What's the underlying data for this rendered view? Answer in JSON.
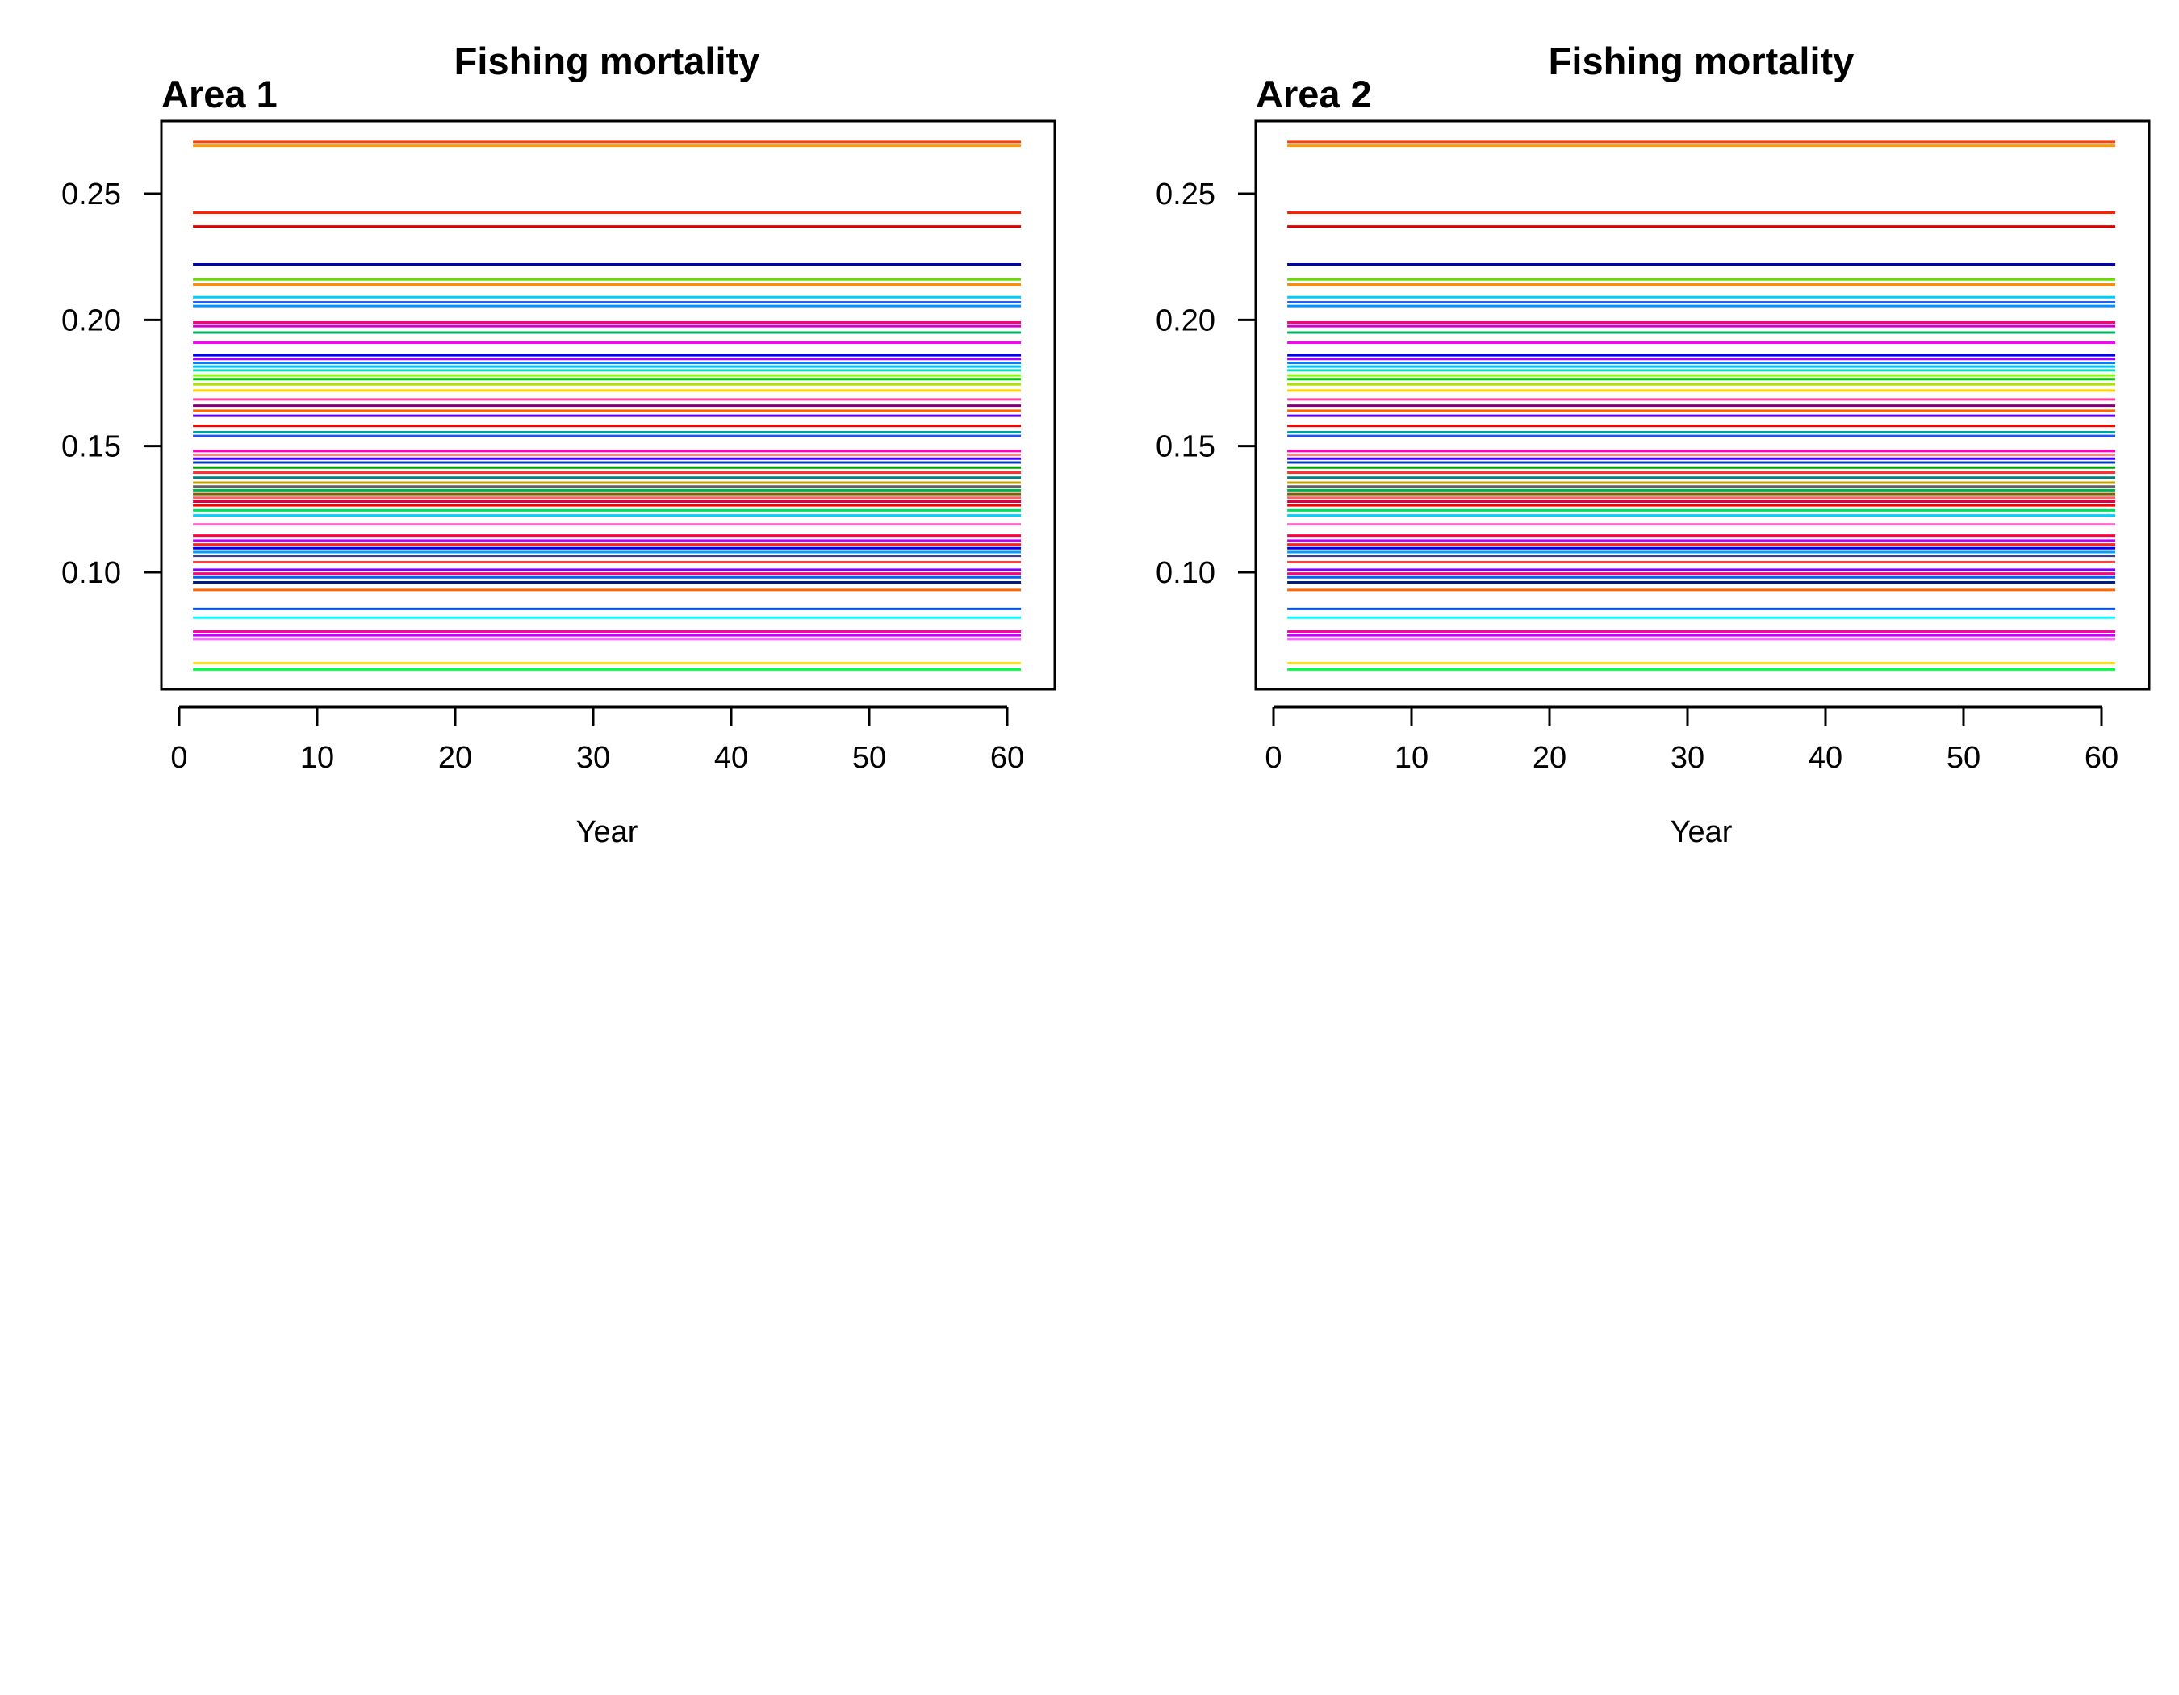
{
  "chart_data": [
    {
      "type": "line",
      "title": "Fishing mortality",
      "panel_label": "Area 1",
      "xlabel": "Year",
      "ylabel": "",
      "xlim": [
        1,
        61
      ],
      "ylim": [
        0.055,
        0.28
      ],
      "xticks": [
        0,
        10,
        20,
        30,
        40,
        50,
        60
      ],
      "xtick_labels": [
        "0",
        "10",
        "20",
        "30",
        "40",
        "50",
        "60"
      ],
      "yticks": [
        0.1,
        0.15,
        0.2,
        0.25
      ],
      "ytick_labels": [
        "0.10",
        "0.15",
        "0.20",
        "0.25"
      ],
      "grid": false,
      "legend": "none",
      "x_range": [
        1,
        61
      ],
      "series": [
        {
          "value": 0.2705,
          "color": "#ff4000"
        },
        {
          "value": 0.269,
          "color": "#ff9900"
        },
        {
          "value": 0.2425,
          "color": "#ff2000"
        },
        {
          "value": 0.237,
          "color": "#e00000"
        },
        {
          "value": 0.222,
          "color": "#0000b0"
        },
        {
          "value": 0.216,
          "color": "#66dd00"
        },
        {
          "value": 0.214,
          "color": "#ff8c00"
        },
        {
          "value": 0.209,
          "color": "#00ccff"
        },
        {
          "value": 0.207,
          "color": "#2060ff"
        },
        {
          "value": 0.2055,
          "color": "#0090ff"
        },
        {
          "value": 0.199,
          "color": "#ff0080"
        },
        {
          "value": 0.1975,
          "color": "#cc00cc"
        },
        {
          "value": 0.195,
          "color": "#00b060"
        },
        {
          "value": 0.191,
          "color": "#ff00ff"
        },
        {
          "value": 0.186,
          "color": "#0000ff"
        },
        {
          "value": 0.1845,
          "color": "#a000ff"
        },
        {
          "value": 0.183,
          "color": "#0080ff"
        },
        {
          "value": 0.1815,
          "color": "#00c0ff"
        },
        {
          "value": 0.18,
          "color": "#00e0c0"
        },
        {
          "value": 0.178,
          "color": "#80ff00"
        },
        {
          "value": 0.1765,
          "color": "#00cc00"
        },
        {
          "value": 0.1745,
          "color": "#b0e000"
        },
        {
          "value": 0.172,
          "color": "#ffd000"
        },
        {
          "value": 0.1685,
          "color": "#ff40a0"
        },
        {
          "value": 0.166,
          "color": "#800080"
        },
        {
          "value": 0.164,
          "color": "#ff6600"
        },
        {
          "value": 0.162,
          "color": "#6000ff"
        },
        {
          "value": 0.158,
          "color": "#ff0000"
        },
        {
          "value": 0.1555,
          "color": "#00a0a0"
        },
        {
          "value": 0.154,
          "color": "#2050ff"
        },
        {
          "value": 0.148,
          "color": "#ff00c0"
        },
        {
          "value": 0.1465,
          "color": "#ff8080"
        },
        {
          "value": 0.145,
          "color": "#4000ff"
        },
        {
          "value": 0.1435,
          "color": "#0040c0"
        },
        {
          "value": 0.1415,
          "color": "#00a000"
        },
        {
          "value": 0.1395,
          "color": "#ff3030"
        },
        {
          "value": 0.1375,
          "color": "#008080"
        },
        {
          "value": 0.1355,
          "color": "#c0a000"
        },
        {
          "value": 0.134,
          "color": "#606060"
        },
        {
          "value": 0.1325,
          "color": "#00b050"
        },
        {
          "value": 0.131,
          "color": "#806000"
        },
        {
          "value": 0.1295,
          "color": "#ff6060"
        },
        {
          "value": 0.128,
          "color": "#e00040"
        },
        {
          "value": 0.1265,
          "color": "#ff0000"
        },
        {
          "value": 0.1245,
          "color": "#00e060"
        },
        {
          "value": 0.1225,
          "color": "#00d0ff"
        },
        {
          "value": 0.119,
          "color": "#ff66cc"
        },
        {
          "value": 0.1145,
          "color": "#ff0040"
        },
        {
          "value": 0.1125,
          "color": "#c000ff"
        },
        {
          "value": 0.111,
          "color": "#ff2020"
        },
        {
          "value": 0.1095,
          "color": "#0000ff"
        },
        {
          "value": 0.108,
          "color": "#00a0ff"
        },
        {
          "value": 0.1065,
          "color": "#404080"
        },
        {
          "value": 0.104,
          "color": "#ff4040"
        },
        {
          "value": 0.101,
          "color": "#8000ff"
        },
        {
          "value": 0.0995,
          "color": "#ff0080"
        },
        {
          "value": 0.098,
          "color": "#0060ff"
        },
        {
          "value": 0.096,
          "color": "#002080"
        },
        {
          "value": 0.093,
          "color": "#ff6600"
        },
        {
          "value": 0.0855,
          "color": "#0050ff"
        },
        {
          "value": 0.082,
          "color": "#00ffff"
        },
        {
          "value": 0.0765,
          "color": "#ff00aa"
        },
        {
          "value": 0.075,
          "color": "#cc00ff"
        },
        {
          "value": 0.0735,
          "color": "#ff66ff"
        },
        {
          "value": 0.064,
          "color": "#ffe000"
        },
        {
          "value": 0.0615,
          "color": "#00ff40"
        }
      ]
    },
    {
      "type": "line",
      "title": "Fishing mortality",
      "panel_label": "Area 2",
      "xlabel": "Year",
      "ylabel": "",
      "xlim": [
        1,
        61
      ],
      "ylim": [
        0.055,
        0.28
      ],
      "xticks": [
        0,
        10,
        20,
        30,
        40,
        50,
        60
      ],
      "xtick_labels": [
        "0",
        "10",
        "20",
        "30",
        "40",
        "50",
        "60"
      ],
      "yticks": [
        0.1,
        0.15,
        0.2,
        0.25
      ],
      "ytick_labels": [
        "0.10",
        "0.15",
        "0.20",
        "0.25"
      ],
      "grid": false,
      "legend": "none",
      "x_range": [
        1,
        61
      ],
      "series": [
        {
          "value": 0.2705,
          "color": "#ff4000"
        },
        {
          "value": 0.269,
          "color": "#ff9900"
        },
        {
          "value": 0.2425,
          "color": "#ff2000"
        },
        {
          "value": 0.237,
          "color": "#e00000"
        },
        {
          "value": 0.222,
          "color": "#0000b0"
        },
        {
          "value": 0.216,
          "color": "#66dd00"
        },
        {
          "value": 0.214,
          "color": "#ff8c00"
        },
        {
          "value": 0.209,
          "color": "#00ccff"
        },
        {
          "value": 0.207,
          "color": "#2060ff"
        },
        {
          "value": 0.2055,
          "color": "#0090ff"
        },
        {
          "value": 0.199,
          "color": "#ff0080"
        },
        {
          "value": 0.1975,
          "color": "#cc00cc"
        },
        {
          "value": 0.195,
          "color": "#00b060"
        },
        {
          "value": 0.191,
          "color": "#ff00ff"
        },
        {
          "value": 0.186,
          "color": "#0000ff"
        },
        {
          "value": 0.1845,
          "color": "#a000ff"
        },
        {
          "value": 0.183,
          "color": "#0080ff"
        },
        {
          "value": 0.1815,
          "color": "#00c0ff"
        },
        {
          "value": 0.18,
          "color": "#00e0c0"
        },
        {
          "value": 0.178,
          "color": "#80ff00"
        },
        {
          "value": 0.1765,
          "color": "#00cc00"
        },
        {
          "value": 0.1745,
          "color": "#b0e000"
        },
        {
          "value": 0.172,
          "color": "#ffd000"
        },
        {
          "value": 0.1685,
          "color": "#ff40a0"
        },
        {
          "value": 0.166,
          "color": "#800080"
        },
        {
          "value": 0.164,
          "color": "#ff6600"
        },
        {
          "value": 0.162,
          "color": "#6000ff"
        },
        {
          "value": 0.158,
          "color": "#ff0000"
        },
        {
          "value": 0.1555,
          "color": "#00a0a0"
        },
        {
          "value": 0.154,
          "color": "#2050ff"
        },
        {
          "value": 0.148,
          "color": "#ff00c0"
        },
        {
          "value": 0.1465,
          "color": "#ff8080"
        },
        {
          "value": 0.145,
          "color": "#4000ff"
        },
        {
          "value": 0.1435,
          "color": "#0040c0"
        },
        {
          "value": 0.1415,
          "color": "#00a000"
        },
        {
          "value": 0.1395,
          "color": "#ff3030"
        },
        {
          "value": 0.1375,
          "color": "#008080"
        },
        {
          "value": 0.1355,
          "color": "#c0a000"
        },
        {
          "value": 0.134,
          "color": "#606060"
        },
        {
          "value": 0.1325,
          "color": "#00b050"
        },
        {
          "value": 0.131,
          "color": "#806000"
        },
        {
          "value": 0.1295,
          "color": "#ff6060"
        },
        {
          "value": 0.128,
          "color": "#e00040"
        },
        {
          "value": 0.1265,
          "color": "#ff0000"
        },
        {
          "value": 0.1245,
          "color": "#00e060"
        },
        {
          "value": 0.1225,
          "color": "#00d0ff"
        },
        {
          "value": 0.119,
          "color": "#ff66cc"
        },
        {
          "value": 0.1145,
          "color": "#ff0040"
        },
        {
          "value": 0.1125,
          "color": "#c000ff"
        },
        {
          "value": 0.111,
          "color": "#ff2020"
        },
        {
          "value": 0.1095,
          "color": "#0000ff"
        },
        {
          "value": 0.108,
          "color": "#00a0ff"
        },
        {
          "value": 0.1065,
          "color": "#404080"
        },
        {
          "value": 0.104,
          "color": "#ff4040"
        },
        {
          "value": 0.101,
          "color": "#8000ff"
        },
        {
          "value": 0.0995,
          "color": "#ff0080"
        },
        {
          "value": 0.098,
          "color": "#0060ff"
        },
        {
          "value": 0.096,
          "color": "#002080"
        },
        {
          "value": 0.093,
          "color": "#ff6600"
        },
        {
          "value": 0.0855,
          "color": "#0050ff"
        },
        {
          "value": 0.082,
          "color": "#00ffff"
        },
        {
          "value": 0.0765,
          "color": "#ff00aa"
        },
        {
          "value": 0.075,
          "color": "#cc00ff"
        },
        {
          "value": 0.0735,
          "color": "#ff66ff"
        },
        {
          "value": 0.064,
          "color": "#ffe000"
        },
        {
          "value": 0.0615,
          "color": "#00ff40"
        }
      ]
    }
  ]
}
